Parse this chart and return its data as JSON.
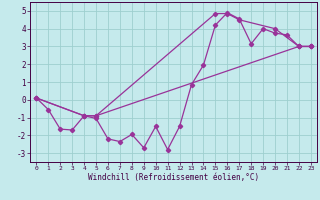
{
  "bg_color": "#c5eaec",
  "grid_color": "#9ecfcf",
  "line_color": "#993399",
  "marker": "D",
  "markersize": 2.2,
  "linewidth": 0.9,
  "xlabel": "Windchill (Refroidissement éolien,°C)",
  "xlim": [
    -0.5,
    23.5
  ],
  "ylim": [
    -3.5,
    5.5
  ],
  "xticks": [
    0,
    1,
    2,
    3,
    4,
    5,
    6,
    7,
    8,
    9,
    10,
    11,
    12,
    13,
    14,
    15,
    16,
    17,
    18,
    19,
    20,
    21,
    22,
    23
  ],
  "yticks": [
    -3,
    -2,
    -1,
    0,
    1,
    2,
    3,
    4,
    5
  ],
  "line1_x": [
    0,
    1,
    2,
    3,
    4,
    5,
    6,
    7,
    8,
    9,
    10,
    11,
    12,
    13,
    14,
    15,
    16,
    17,
    18,
    19,
    20,
    21,
    22,
    23
  ],
  "line1_y": [
    0.1,
    -0.55,
    -1.65,
    -1.7,
    -0.9,
    -1.05,
    -2.2,
    -2.35,
    -1.95,
    -2.7,
    -1.5,
    -2.8,
    -1.5,
    0.85,
    1.95,
    4.2,
    4.9,
    4.55,
    3.15,
    4.0,
    3.75,
    3.65,
    3.0,
    3.0
  ],
  "line2_x": [
    0,
    4,
    5,
    22,
    23
  ],
  "line2_y": [
    0.1,
    -0.9,
    -0.9,
    3.0,
    3.0
  ],
  "line2_markers": [
    true,
    true,
    true,
    true,
    true
  ],
  "line3_x": [
    0,
    4,
    5,
    15,
    16,
    17,
    20,
    22,
    23
  ],
  "line3_y": [
    0.1,
    -0.9,
    -0.9,
    4.85,
    4.85,
    4.5,
    4.0,
    3.0,
    3.0
  ],
  "line3_markers": [
    true,
    true,
    true,
    true,
    true,
    true,
    true,
    true,
    true
  ],
  "xlabel_fontsize": 5.5,
  "tick_fontsize_x": 4.5,
  "tick_fontsize_y": 5.5
}
